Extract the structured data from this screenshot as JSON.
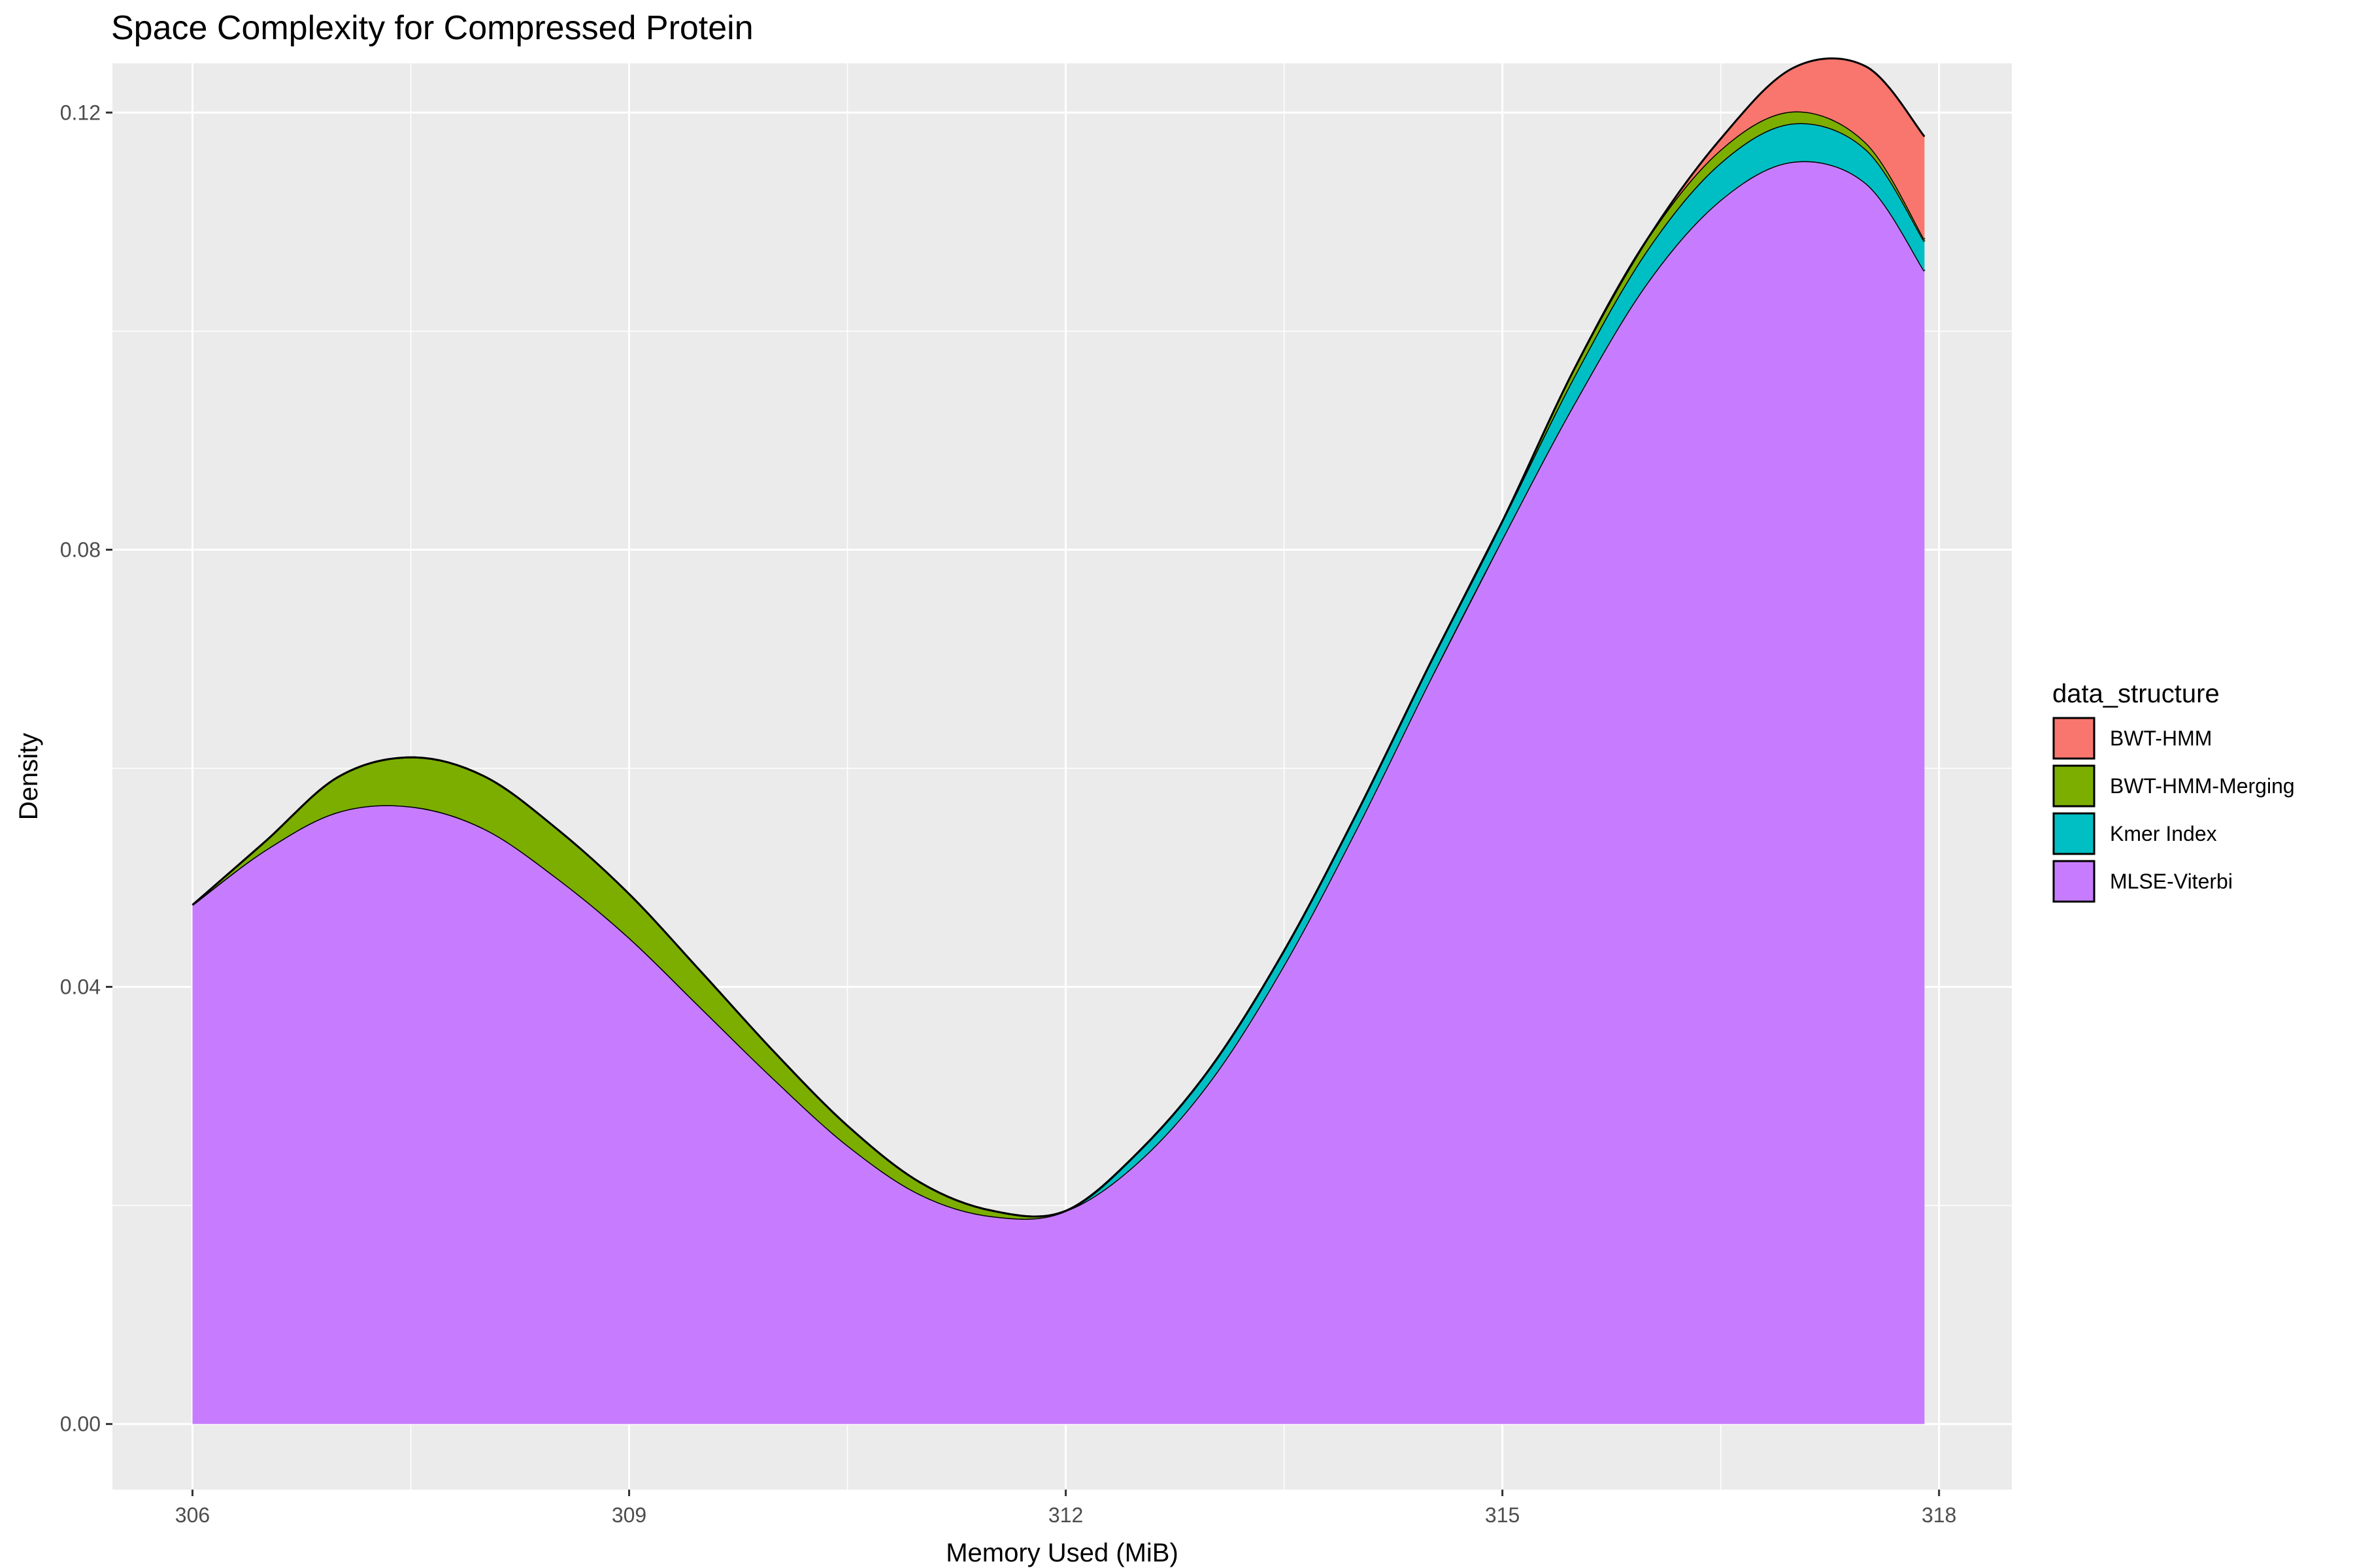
{
  "chart_data": {
    "type": "area",
    "stacked": true,
    "title": "Space Complexity for Compressed Protein",
    "xlabel": "Memory Used (MiB)",
    "ylabel": "Density",
    "xlim": [
      305.45,
      318.5
    ],
    "ylim": [
      -0.006,
      0.1245
    ],
    "x_ticks": [
      306,
      309,
      312,
      315,
      318
    ],
    "x_tick_labels": [
      "306",
      "309",
      "312",
      "315",
      "318"
    ],
    "y_ticks": [
      0.0,
      0.04,
      0.08,
      0.12
    ],
    "y_tick_labels": [
      "0.00",
      "0.04",
      "0.08",
      "0.12"
    ],
    "grid": true,
    "legend_title": "data_structure",
    "legend_position": "right",
    "x": [
      306.0,
      306.5,
      307.0,
      307.5,
      308.0,
      308.5,
      309.0,
      309.5,
      310.0,
      310.5,
      311.0,
      311.5,
      312.0,
      312.5,
      313.0,
      313.5,
      314.0,
      314.5,
      315.0,
      315.5,
      316.0,
      316.5,
      317.0,
      317.5,
      317.9
    ],
    "series": [
      {
        "name": "MLSE-Viterbi",
        "color": "#C77CFF",
        "values": [
          0.0475,
          0.0525,
          0.056,
          0.0565,
          0.0545,
          0.05,
          0.0445,
          0.038,
          0.0315,
          0.0255,
          0.021,
          0.019,
          0.0195,
          0.024,
          0.0315,
          0.042,
          0.0545,
          0.068,
          0.081,
          0.0935,
          0.1045,
          0.112,
          0.1155,
          0.1135,
          0.1055
        ]
      },
      {
        "name": "Kmer Index",
        "color": "#00BFC4",
        "values": [
          0.0,
          0.0,
          0.0,
          0.0,
          0.0,
          0.0,
          0.0,
          0.0,
          0.0,
          0.0,
          0.0,
          0.0,
          0.0,
          0.0009,
          0.0012,
          0.0013,
          0.0014,
          0.0015,
          0.0016,
          0.0025,
          0.003,
          0.0034,
          0.0035,
          0.0031,
          0.0027
        ]
      },
      {
        "name": "BWT-HMM-Merging",
        "color": "#7CAE00",
        "values": [
          0.0,
          0.0008,
          0.0032,
          0.0045,
          0.0048,
          0.0045,
          0.004,
          0.0033,
          0.0025,
          0.0018,
          0.0011,
          0.0005,
          0.0,
          0.0,
          0.0,
          0.0,
          0.0,
          0.0,
          0.0,
          0.0007,
          0.001,
          0.0012,
          0.0011,
          0.0006,
          0.0002
        ]
      },
      {
        "name": "BWT-HMM",
        "color": "#F8766D",
        "values": [
          0.0,
          0.0,
          0.0,
          0.0,
          0.0,
          0.0,
          0.0,
          0.0,
          0.0,
          0.0,
          0.0,
          0.0,
          0.0,
          0.0,
          0.0,
          0.0,
          0.0,
          0.0,
          0.0,
          0.0,
          0.0,
          0.001,
          0.004,
          0.007,
          0.0094
        ]
      }
    ],
    "legend_order": [
      "BWT-HMM",
      "BWT-HMM-Merging",
      "Kmer Index",
      "MLSE-Viterbi"
    ]
  }
}
